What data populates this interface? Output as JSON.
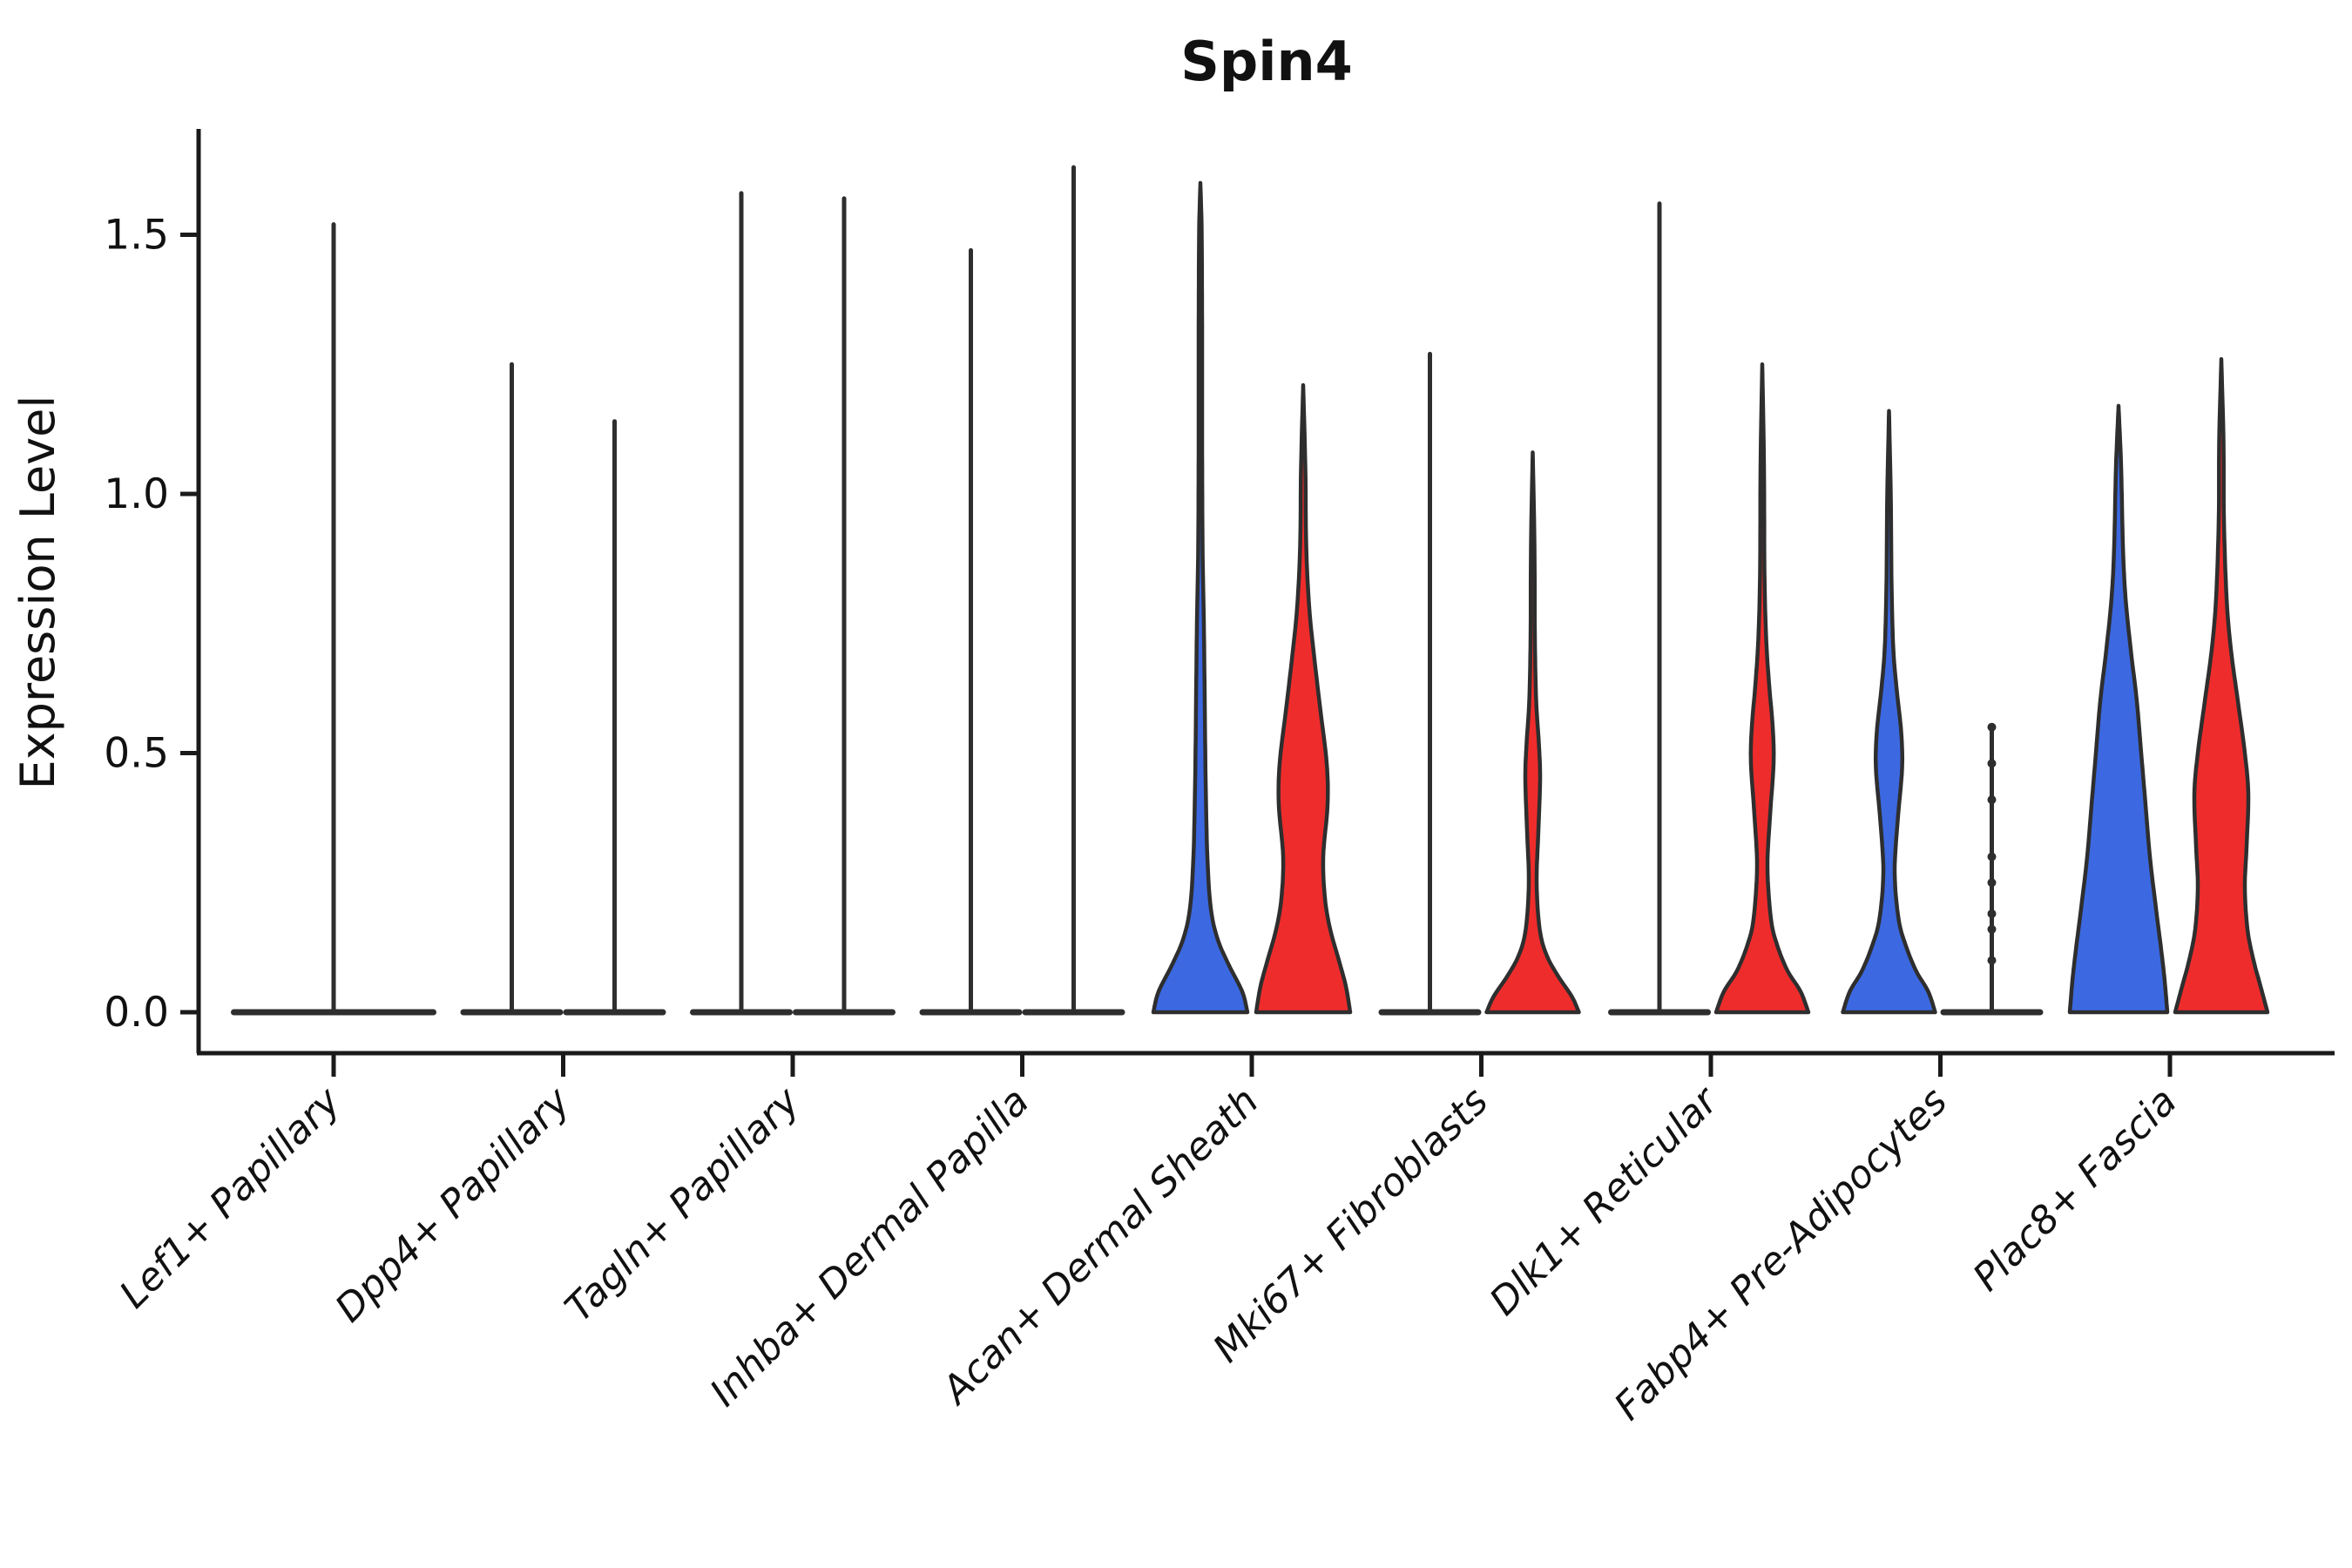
{
  "chart_data": {
    "type": "violin",
    "title": "Spin4",
    "xlabel": "",
    "ylabel": "Expression Level",
    "ylim": [
      0,
      1.7
    ],
    "yticks": [
      0.0,
      0.5,
      1.0,
      1.5
    ],
    "ytick_labels": [
      "0.0",
      "0.5",
      "1.0",
      "1.5"
    ],
    "grid": false,
    "legend_position": "none",
    "colors": {
      "blue": "#3C69E1",
      "red": "#EF2C2C",
      "outline": "#2e2e2e",
      "axis": "#1a1a1a"
    },
    "categories": [
      "Lef1+ Papillary",
      "Dpp4+ Papillary",
      "Tagln+ Papillary",
      "Inhba+ Dermal Papilla",
      "Acan+ Dermal Sheath",
      "Mki67+ Fibroblasts",
      "Dlk1+ Reticular",
      "Fabp4+ Pre-Adipocytes",
      "Plac8+ Fascia"
    ],
    "violins": [
      {
        "category": "Lef1+ Papillary",
        "items": [
          {
            "group": "single",
            "kind": "spike",
            "max": 1.52,
            "base_width": 236,
            "centered": true
          }
        ]
      },
      {
        "category": "Dpp4+ Papillary",
        "items": [
          {
            "group": "blue",
            "kind": "spike",
            "max": 1.25,
            "base_width": 118
          },
          {
            "group": "red",
            "kind": "spike",
            "max": 1.14,
            "base_width": 118
          }
        ]
      },
      {
        "category": "Tagln+ Papillary",
        "items": [
          {
            "group": "blue",
            "kind": "spike",
            "max": 1.58,
            "base_width": 118
          },
          {
            "group": "red",
            "kind": "spike",
            "max": 1.57,
            "base_width": 118
          }
        ]
      },
      {
        "category": "Inhba+ Dermal Papilla",
        "items": [
          {
            "group": "blue",
            "kind": "spike",
            "max": 1.47,
            "base_width": 118
          },
          {
            "group": "red",
            "kind": "spike",
            "max": 1.63,
            "base_width": 118
          }
        ]
      },
      {
        "category": "Acan+ Dermal Sheath",
        "items": [
          {
            "group": "blue",
            "kind": "body",
            "max": 1.6,
            "profile": [
              [
                0,
                108
              ],
              [
                0.04,
                96
              ],
              [
                0.09,
                66
              ],
              [
                0.14,
                40
              ],
              [
                0.2,
                24
              ],
              [
                0.3,
                16
              ],
              [
                0.45,
                12
              ],
              [
                0.6,
                10
              ],
              [
                0.75,
                8
              ],
              [
                0.9,
                5
              ],
              [
                1.1,
                4
              ],
              [
                1.3,
                4
              ],
              [
                1.5,
                3
              ],
              [
                1.6,
                0
              ]
            ]
          },
          {
            "group": "red",
            "kind": "body",
            "max": 1.21,
            "profile": [
              [
                0,
                108
              ],
              [
                0.05,
                98
              ],
              [
                0.1,
                82
              ],
              [
                0.16,
                62
              ],
              [
                0.22,
                50
              ],
              [
                0.3,
                46
              ],
              [
                0.4,
                56
              ],
              [
                0.48,
                54
              ],
              [
                0.58,
                40
              ],
              [
                0.68,
                26
              ],
              [
                0.78,
                14
              ],
              [
                0.9,
                7
              ],
              [
                1.05,
                5
              ],
              [
                1.21,
                0
              ]
            ]
          }
        ]
      },
      {
        "category": "Mki67+ Fibroblasts",
        "items": [
          {
            "group": "blue",
            "kind": "spike",
            "max": 1.27,
            "base_width": 118
          },
          {
            "group": "red",
            "kind": "body",
            "max": 1.08,
            "profile": [
              [
                0,
                106
              ],
              [
                0.03,
                90
              ],
              [
                0.07,
                58
              ],
              [
                0.11,
                32
              ],
              [
                0.16,
                16
              ],
              [
                0.25,
                9
              ],
              [
                0.35,
                13
              ],
              [
                0.45,
                17
              ],
              [
                0.52,
                14
              ],
              [
                0.6,
                8
              ],
              [
                0.72,
                5
              ],
              [
                0.9,
                4
              ],
              [
                1.08,
                0
              ]
            ]
          }
        ]
      },
      {
        "category": "Dlk1+ Reticular",
        "items": [
          {
            "group": "blue",
            "kind": "spike",
            "max": 1.56,
            "base_width": 118
          },
          {
            "group": "red",
            "kind": "body",
            "max": 1.25,
            "profile": [
              [
                0,
                106
              ],
              [
                0.04,
                88
              ],
              [
                0.08,
                58
              ],
              [
                0.13,
                34
              ],
              [
                0.18,
                20
              ],
              [
                0.28,
                12
              ],
              [
                0.38,
                18
              ],
              [
                0.48,
                26
              ],
              [
                0.55,
                24
              ],
              [
                0.63,
                16
              ],
              [
                0.72,
                9
              ],
              [
                0.85,
                5
              ],
              [
                1.05,
                4
              ],
              [
                1.25,
                0
              ]
            ]
          }
        ]
      },
      {
        "category": "Fabp4+ Pre-Adipocytes",
        "items": [
          {
            "group": "blue",
            "kind": "body",
            "max": 1.16,
            "profile": [
              [
                0,
                106
              ],
              [
                0.04,
                90
              ],
              [
                0.08,
                62
              ],
              [
                0.13,
                38
              ],
              [
                0.18,
                22
              ],
              [
                0.27,
                13
              ],
              [
                0.37,
                20
              ],
              [
                0.47,
                30
              ],
              [
                0.54,
                28
              ],
              [
                0.62,
                18
              ],
              [
                0.7,
                10
              ],
              [
                0.82,
                6
              ],
              [
                1.0,
                4
              ],
              [
                1.16,
                0
              ]
            ]
          },
          {
            "group": "red",
            "kind": "strip",
            "max": 0.55,
            "base_width": 118,
            "dots": [
              0.55,
              0.48,
              0.41,
              0.3,
              0.25,
              0.19,
              0.16,
              0.1
            ]
          }
        ]
      },
      {
        "category": "Plac8+ Fascia",
        "items": [
          {
            "group": "blue",
            "kind": "body",
            "max": 1.17,
            "profile": [
              [
                0,
                112
              ],
              [
                0.06,
                106
              ],
              [
                0.12,
                98
              ],
              [
                0.2,
                86
              ],
              [
                0.3,
                72
              ],
              [
                0.4,
                62
              ],
              [
                0.5,
                52
              ],
              [
                0.6,
                42
              ],
              [
                0.7,
                28
              ],
              [
                0.8,
                16
              ],
              [
                0.9,
                10
              ],
              [
                1.05,
                6
              ],
              [
                1.17,
                0
              ]
            ]
          },
          {
            "group": "red",
            "kind": "body",
            "max": 1.26,
            "profile": [
              [
                0,
                106
              ],
              [
                0.05,
                90
              ],
              [
                0.1,
                74
              ],
              [
                0.16,
                60
              ],
              [
                0.24,
                54
              ],
              [
                0.32,
                58
              ],
              [
                0.42,
                62
              ],
              [
                0.5,
                54
              ],
              [
                0.6,
                38
              ],
              [
                0.7,
                22
              ],
              [
                0.8,
                12
              ],
              [
                0.95,
                6
              ],
              [
                1.1,
                5
              ],
              [
                1.26,
                0
              ]
            ]
          }
        ]
      }
    ]
  }
}
